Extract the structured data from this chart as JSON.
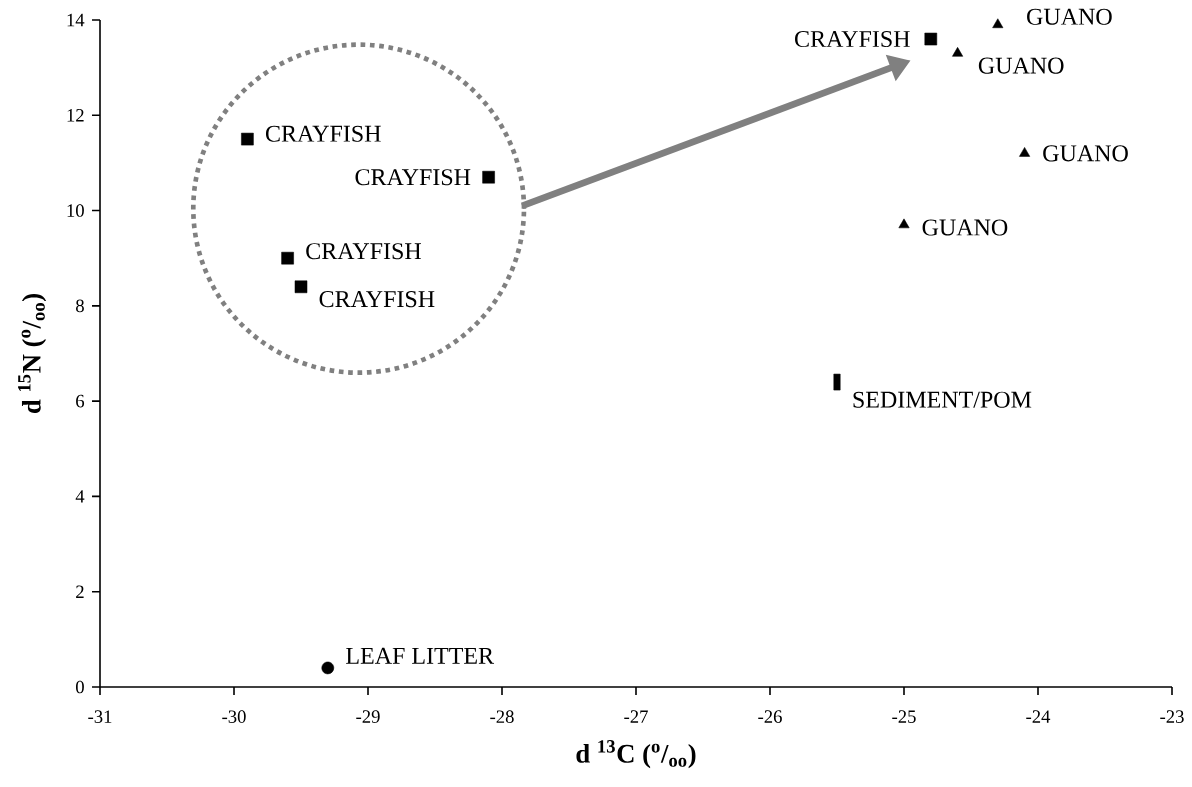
{
  "chart_data": {
    "type": "scatter",
    "xlabel": "d $^{13}$C ($^{o}$/$_{oo}$)",
    "ylabel": "d $^{15}$N ($^{o}$/$_{oo}$)",
    "xlim": [
      -31,
      -23
    ],
    "ylim": [
      0,
      14
    ],
    "xticks": [
      -31,
      -30,
      -29,
      -28,
      -27,
      -26,
      -25,
      -24,
      -23
    ],
    "yticks": [
      0,
      2,
      4,
      6,
      8,
      10,
      12,
      14
    ],
    "series": [
      {
        "name": "CRAYFISH",
        "color": "#000000",
        "marker": "square",
        "x": [
          -29.9
        ],
        "values": [
          11.5
        ]
      },
      {
        "name": "CRAYFISH",
        "color": "#000000",
        "marker": "square",
        "x": [
          -28.1
        ],
        "values": [
          10.7
        ]
      },
      {
        "name": "CRAYFISH",
        "color": "#000000",
        "marker": "square",
        "x": [
          -29.6
        ],
        "values": [
          9.0
        ]
      },
      {
        "name": "CRAYFISH",
        "color": "#000000",
        "marker": "square",
        "x": [
          -29.5
        ],
        "values": [
          8.4
        ]
      },
      {
        "name": "CRAYFISH",
        "color": "#000000",
        "marker": "square",
        "x": [
          -24.8
        ],
        "values": [
          13.6
        ]
      },
      {
        "name": "GUANO",
        "color": "#000000",
        "marker": "triangle",
        "x": [
          -24.3
        ],
        "values": [
          13.9
        ]
      },
      {
        "name": "GUANO",
        "color": "#000000",
        "marker": "triangle",
        "x": [
          -24.6
        ],
        "values": [
          13.3
        ]
      },
      {
        "name": "GUANO",
        "color": "#000000",
        "marker": "triangle",
        "x": [
          -24.1
        ],
        "values": [
          11.2
        ]
      },
      {
        "name": "GUANO",
        "color": "#000000",
        "marker": "triangle",
        "x": [
          -25.0
        ],
        "values": [
          9.7
        ]
      },
      {
        "name": "LEAF LITTER",
        "color": "#000000",
        "marker": "circle",
        "x": [
          -29.3
        ],
        "values": [
          0.4
        ]
      },
      {
        "name": "SEDIMENT/POM",
        "color": "#000000",
        "x": [
          -25.5
        ],
        "values": [
          6.4
        ]
      }
    ]
  }
}
